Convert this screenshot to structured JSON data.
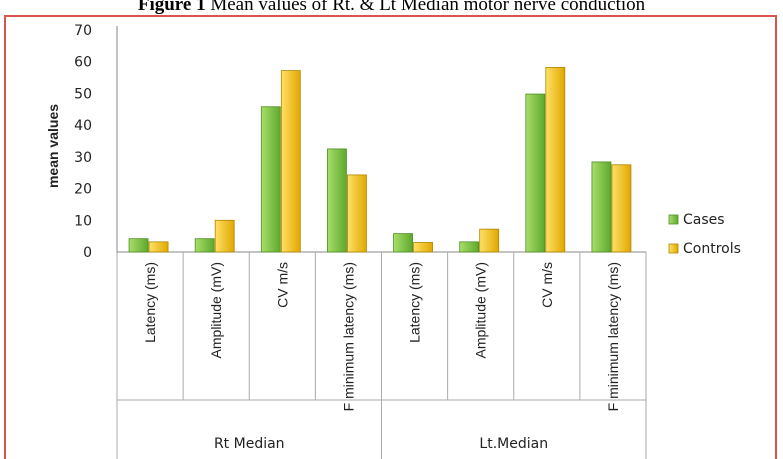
{
  "figure": {
    "title_bold": "Figure 1",
    "title_rest": " Mean values of Rt. & Lt Median motor nerve conduction"
  },
  "chart_data": {
    "type": "bar",
    "ylabel": "mean values",
    "ylim": [
      0,
      70
    ],
    "yticks": [
      0,
      10,
      20,
      30,
      40,
      50,
      60,
      70
    ],
    "grid": false,
    "legend_position": "right",
    "groups": [
      {
        "name": "Rt Median",
        "categories": [
          "Latency (ms)",
          "Amplitude (mV)",
          "CV m/s",
          "F minimum latency (ms)"
        ]
      },
      {
        "name": "Lt.Median",
        "categories": [
          "Latency (ms)",
          "Amplitude (mV)",
          "CV m/s",
          "F minimum latency (ms)"
        ]
      }
    ],
    "series": [
      {
        "name": "Cases",
        "color": "#7cc242",
        "values": [
          4.2,
          4.2,
          45.8,
          32.5,
          5.8,
          3.2,
          49.8,
          28.4
        ]
      },
      {
        "name": "Controls",
        "color": "#f5c000",
        "values": [
          3.2,
          10.0,
          57.2,
          24.3,
          3.0,
          7.2,
          58.2,
          27.5
        ]
      }
    ]
  }
}
